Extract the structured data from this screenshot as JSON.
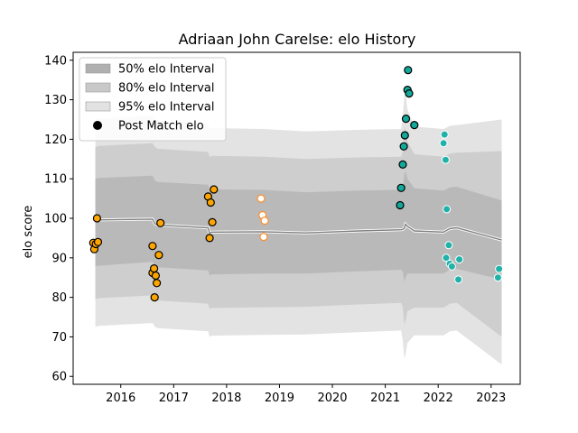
{
  "chart_data": {
    "type": "scatter",
    "title": "Adriaan John Carelse: elo History",
    "xlabel": "",
    "ylabel": "elo score",
    "xlim": [
      2015.1,
      2023.55
    ],
    "ylim": [
      58,
      142
    ],
    "x_ticks": [
      2016,
      2017,
      2018,
      2019,
      2020,
      2021,
      2022,
      2023
    ],
    "y_ticks": [
      60,
      70,
      80,
      90,
      100,
      110,
      120,
      130,
      140
    ],
    "grid": false,
    "legend_placement": "top-left",
    "legend": [
      {
        "label": "50% elo Interval",
        "kind": "band",
        "color": "#b0b0b0"
      },
      {
        "label": "80% elo Interval",
        "kind": "band",
        "color": "#c8c8c8"
      },
      {
        "label": "95% elo Interval",
        "kind": "band",
        "color": "#e2e2e2"
      },
      {
        "label": "Post Match elo",
        "kind": "dot",
        "color": "#000000"
      }
    ],
    "band_colors": {
      "p50": "#b9b9b9",
      "p80": "#cecece",
      "p95": "#e3e3e3"
    },
    "bands": [
      {
        "x": 2015.52,
        "mean": 99.2,
        "p50": [
          87.8,
          110.0
        ],
        "p80": [
          79.5,
          118.0
        ],
        "p95": [
          72.5,
          125.0
        ]
      },
      {
        "x": 2015.58,
        "mean": 99.6,
        "p50": [
          88.0,
          110.2
        ],
        "p80": [
          79.8,
          118.3
        ],
        "p95": [
          72.8,
          125.2
        ]
      },
      {
        "x": 2016.6,
        "mean": 99.8,
        "p50": [
          89.0,
          110.8
        ],
        "p80": [
          80.5,
          119.0
        ],
        "p95": [
          73.5,
          126.0
        ]
      },
      {
        "x": 2016.65,
        "mean": 98.6,
        "p50": [
          88.0,
          109.5
        ],
        "p80": [
          79.5,
          118.0
        ],
        "p95": [
          72.5,
          125.0
        ]
      },
      {
        "x": 2016.7,
        "mean": 98.3,
        "p50": [
          87.6,
          109.2
        ],
        "p80": [
          79.2,
          117.6
        ],
        "p95": [
          72.2,
          124.6
        ]
      },
      {
        "x": 2017.65,
        "mean": 97.6,
        "p50": [
          86.8,
          108.5
        ],
        "p80": [
          78.4,
          116.8
        ],
        "p95": [
          71.4,
          123.8
        ]
      },
      {
        "x": 2017.68,
        "mean": 96.2,
        "p50": [
          85.5,
          107.0
        ],
        "p80": [
          77.0,
          115.5
        ],
        "p95": [
          70.0,
          122.5
        ]
      },
      {
        "x": 2017.72,
        "mean": 96.5,
        "p50": [
          85.8,
          107.3
        ],
        "p80": [
          77.3,
          115.8
        ],
        "p95": [
          70.3,
          122.8
        ]
      },
      {
        "x": 2018.7,
        "mean": 96.6,
        "p50": [
          86.0,
          107.2
        ],
        "p80": [
          77.5,
          115.6
        ],
        "p95": [
          70.5,
          122.6
        ]
      },
      {
        "x": 2019.5,
        "mean": 96.3,
        "p50": [
          86.0,
          106.6
        ],
        "p80": [
          77.6,
          115.0
        ],
        "p95": [
          70.6,
          122.0
        ]
      },
      {
        "x": 2020.5,
        "mean": 96.8,
        "p50": [
          86.6,
          107.0
        ],
        "p80": [
          78.2,
          115.4
        ],
        "p95": [
          71.2,
          122.4
        ]
      },
      {
        "x": 2021.3,
        "mean": 97.1,
        "p50": [
          87.0,
          107.2
        ],
        "p80": [
          78.6,
          115.6
        ],
        "p95": [
          71.6,
          122.6
        ]
      },
      {
        "x": 2021.33,
        "mean": 97.2,
        "p50": [
          86.5,
          108.0
        ],
        "p80": [
          77.5,
          117.0
        ],
        "p95": [
          69.0,
          125.5
        ]
      },
      {
        "x": 2021.36,
        "mean": 97.5,
        "p50": [
          84.0,
          111.0
        ],
        "p80": [
          73.0,
          122.0
        ],
        "p95": [
          64.5,
          131.0
        ]
      },
      {
        "x": 2021.38,
        "mean": 98.5,
        "p50": [
          85.0,
          112.0
        ],
        "p80": [
          74.0,
          123.0
        ],
        "p95": [
          65.5,
          132.0
        ]
      },
      {
        "x": 2021.42,
        "mean": 98.0,
        "p50": [
          86.0,
          110.0
        ],
        "p80": [
          76.5,
          119.5
        ],
        "p95": [
          68.5,
          127.5
        ]
      },
      {
        "x": 2021.55,
        "mean": 96.8,
        "p50": [
          86.0,
          107.6
        ],
        "p80": [
          77.4,
          116.2
        ],
        "p95": [
          70.4,
          123.2
        ]
      },
      {
        "x": 2022.1,
        "mean": 96.5,
        "p50": [
          86.0,
          107.0
        ],
        "p80": [
          77.4,
          115.6
        ],
        "p95": [
          70.4,
          122.6
        ]
      },
      {
        "x": 2022.22,
        "mean": 97.4,
        "p50": [
          87.0,
          107.8
        ],
        "p80": [
          78.4,
          116.4
        ],
        "p95": [
          71.4,
          123.4
        ]
      },
      {
        "x": 2022.35,
        "mean": 97.6,
        "p50": [
          87.2,
          108.0
        ],
        "p80": [
          78.6,
          116.6
        ],
        "p95": [
          71.6,
          123.6
        ]
      },
      {
        "x": 2023.2,
        "mean": 94.5,
        "p50": [
          84.5,
          104.5
        ],
        "p80": [
          70.0,
          117.0
        ],
        "p95": [
          63.0,
          125.0
        ]
      }
    ],
    "series": [
      {
        "color": "#ffa500",
        "style": "filled",
        "points": [
          {
            "x": 2015.48,
            "y": 93.8
          },
          {
            "x": 2015.5,
            "y": 92.2
          },
          {
            "x": 2015.53,
            "y": 93.5
          },
          {
            "x": 2015.57,
            "y": 94.0
          },
          {
            "x": 2015.55,
            "y": 100.0
          },
          {
            "x": 2016.6,
            "y": 93.0
          },
          {
            "x": 2016.6,
            "y": 86.2
          },
          {
            "x": 2016.63,
            "y": 87.3
          },
          {
            "x": 2016.66,
            "y": 85.5
          },
          {
            "x": 2016.68,
            "y": 83.6
          },
          {
            "x": 2016.64,
            "y": 80.0
          },
          {
            "x": 2016.72,
            "y": 90.7
          },
          {
            "x": 2016.75,
            "y": 98.8
          },
          {
            "x": 2017.65,
            "y": 105.5
          },
          {
            "x": 2017.7,
            "y": 104.0
          },
          {
            "x": 2017.73,
            "y": 99.0
          },
          {
            "x": 2017.76,
            "y": 107.3
          },
          {
            "x": 2017.68,
            "y": 95.0
          }
        ]
      },
      {
        "color": "#ff8c28",
        "style": "hollow",
        "points": [
          {
            "x": 2018.65,
            "y": 105.0
          },
          {
            "x": 2018.68,
            "y": 100.8
          },
          {
            "x": 2018.72,
            "y": 99.4
          },
          {
            "x": 2018.7,
            "y": 95.3
          }
        ]
      },
      {
        "color": "#12a89a",
        "style": "filled",
        "points": [
          {
            "x": 2021.28,
            "y": 103.3
          },
          {
            "x": 2021.3,
            "y": 107.7
          },
          {
            "x": 2021.33,
            "y": 113.6
          },
          {
            "x": 2021.35,
            "y": 118.2
          },
          {
            "x": 2021.37,
            "y": 121.0
          },
          {
            "x": 2021.39,
            "y": 125.2
          },
          {
            "x": 2021.42,
            "y": 132.5
          },
          {
            "x": 2021.43,
            "y": 137.5
          },
          {
            "x": 2021.45,
            "y": 131.6
          },
          {
            "x": 2021.55,
            "y": 123.6
          }
        ]
      },
      {
        "color": "#20b2aa",
        "style": "filled-light",
        "points": [
          {
            "x": 2022.1,
            "y": 119.0
          },
          {
            "x": 2022.12,
            "y": 121.2
          },
          {
            "x": 2022.14,
            "y": 114.8
          },
          {
            "x": 2022.16,
            "y": 102.3
          },
          {
            "x": 2022.2,
            "y": 93.2
          },
          {
            "x": 2022.15,
            "y": 90.0
          },
          {
            "x": 2022.22,
            "y": 88.5
          },
          {
            "x": 2022.26,
            "y": 87.8
          },
          {
            "x": 2022.4,
            "y": 89.6
          },
          {
            "x": 2022.38,
            "y": 84.5
          },
          {
            "x": 2023.15,
            "y": 87.2
          },
          {
            "x": 2023.13,
            "y": 85.0
          }
        ]
      }
    ]
  }
}
